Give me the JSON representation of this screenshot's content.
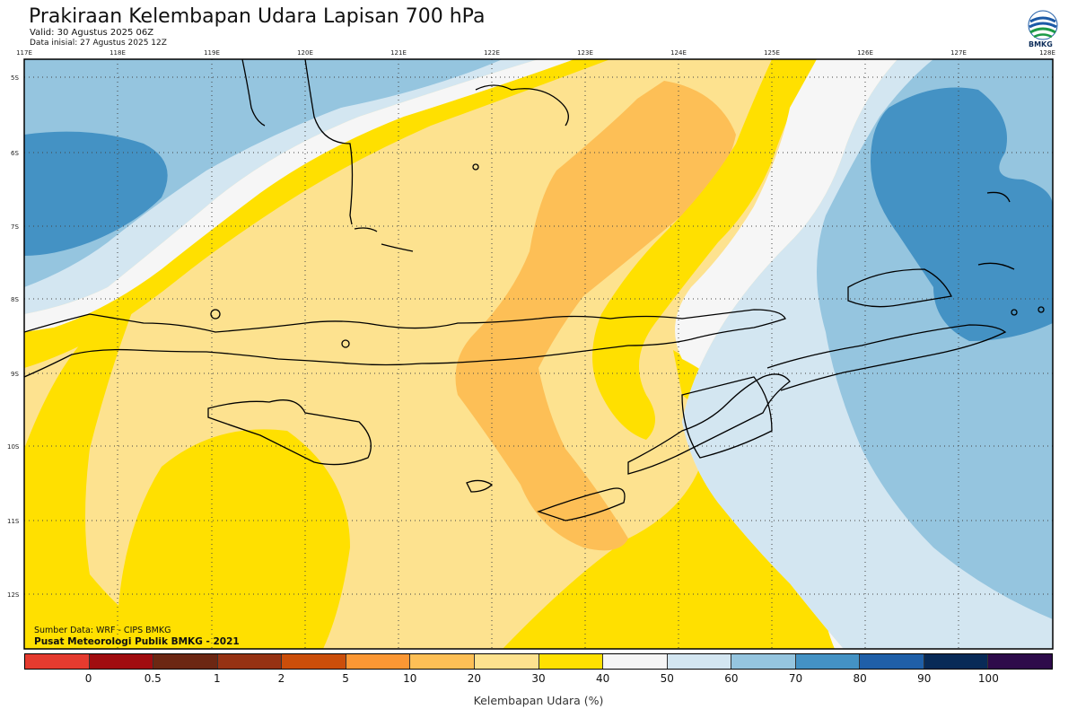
{
  "header": {
    "title": "Prakiraan Kelembapan Udara Lapisan 700 hPa",
    "valid": "Valid: 30 Agustus 2025 06Z",
    "init": "Data inisial: 27 Agustus 2025 12Z"
  },
  "logo": {
    "text": "BMKG",
    "icon": "bmkg-logo-icon"
  },
  "map": {
    "lon_labels": [
      "117E",
      "118E",
      "119E",
      "120E",
      "121E",
      "122E",
      "123E",
      "124E",
      "125E",
      "126E",
      "127E",
      "128E"
    ],
    "lat_labels": [
      "5S",
      "6S",
      "7S",
      "8S",
      "9S",
      "10S",
      "11S",
      "12S"
    ],
    "region": "Nusa Tenggara",
    "colors": {
      "c30_40": "#ffe000",
      "c20_30": "#fde28f",
      "c10_20": "#fdbf56",
      "c40_50": "#f6f6f6",
      "c50_60": "#d3e6f1",
      "c60_70": "#95c5df",
      "c70_80": "#4492c4",
      "land_outline": "#000000"
    }
  },
  "footer": {
    "source": "Sumber Data: WRF - CIPS BMKG",
    "org": "Pusat Meteorologi Publik BMKG - 2021"
  },
  "colorbar": {
    "colors": [
      "#e53b2f",
      "#a10d10",
      "#6c2713",
      "#963213",
      "#cb4e0a",
      "#fb9734",
      "#fdbf56",
      "#fde28f",
      "#ffe000",
      "#f6f6f6",
      "#d3e6f1",
      "#95c5df",
      "#4492c4",
      "#1f5fa8",
      "#082a57",
      "#2e0b4a"
    ],
    "ticks": [
      "0",
      "0.5",
      "1",
      "2",
      "5",
      "10",
      "20",
      "30",
      "40",
      "50",
      "60",
      "70",
      "80",
      "90",
      "100"
    ],
    "label": "Kelembapan Udara (%)"
  }
}
